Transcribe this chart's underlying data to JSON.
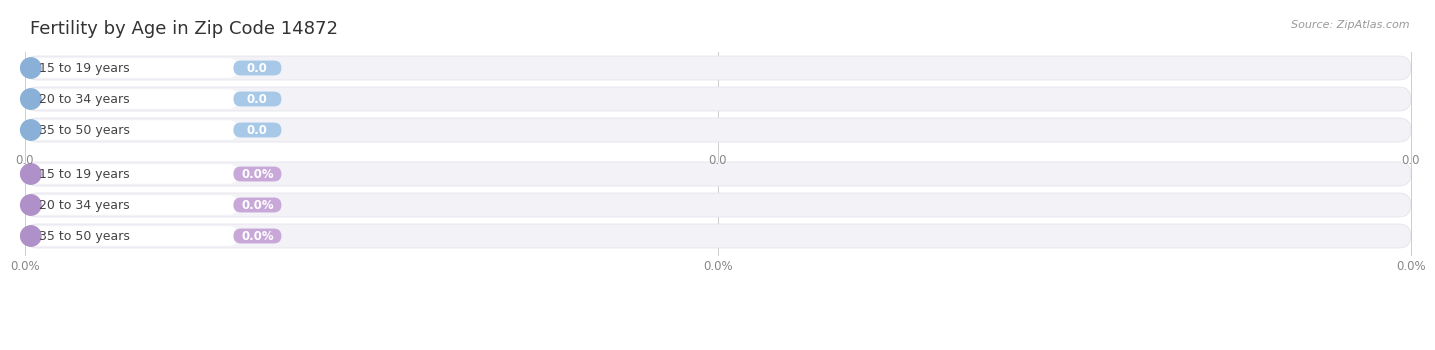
{
  "title": "Fertility by Age in Zip Code 14872",
  "source": "Source: ZipAtlas.com",
  "top_group": {
    "labels": [
      "15 to 19 years",
      "20 to 34 years",
      "35 to 50 years"
    ],
    "values": [
      0.0,
      0.0,
      0.0
    ],
    "bar_color": "#aac4e0",
    "bar_bg_color": "#f2f2f7",
    "circle_color": "#8ab0d8",
    "badge_color": "#a8c8e8",
    "value_labels": [
      "0.0",
      "0.0",
      "0.0"
    ],
    "tick_labels": [
      "0.0",
      "0.0",
      "0.0"
    ]
  },
  "bottom_group": {
    "labels": [
      "15 to 19 years",
      "20 to 34 years",
      "35 to 50 years"
    ],
    "values": [
      0.0,
      0.0,
      0.0
    ],
    "bar_color": "#c8b0d8",
    "bar_bg_color": "#f2f2f7",
    "circle_color": "#b090c8",
    "badge_color": "#c8a8d8",
    "value_labels": [
      "0.0%",
      "0.0%",
      "0.0%"
    ],
    "tick_labels": [
      "0.0%",
      "0.0%",
      "0.0%"
    ]
  },
  "bg_color": "#ffffff",
  "title_fontsize": 13,
  "label_fontsize": 9,
  "value_fontsize": 8.5,
  "tick_fontsize": 8.5,
  "source_fontsize": 8
}
